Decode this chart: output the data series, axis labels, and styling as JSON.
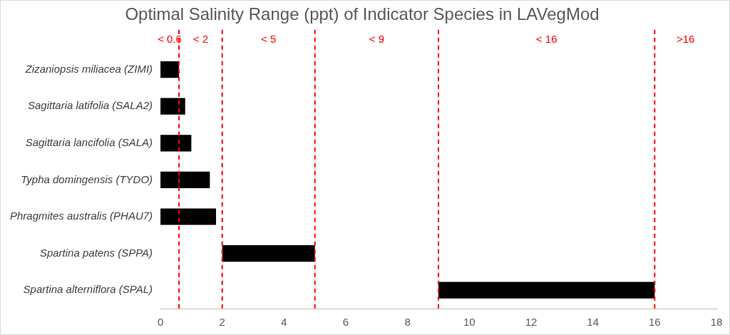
{
  "chart_data": {
    "type": "bar",
    "orientation": "horizontal",
    "title": "Optimal Salinity Range (ppt) of Indicator Species in LAVegMod",
    "categories": [
      "Zizaniopsis miliacea (ZIMI)",
      "Sagittaria latifolia (SALA2)",
      "Sagittaria lancifolia (SALA)",
      "Typha domingensis (TYDO)",
      "Phragmites australis (PHAU7)",
      "Spartina patens (SPPA)",
      "Spartina alterniflora (SPAL)"
    ],
    "values": [
      0.6,
      0.8,
      1.0,
      1.6,
      1.8,
      3,
      7
    ],
    "base": [
      0,
      0,
      0,
      0,
      0,
      2,
      9
    ],
    "color": "#000000",
    "xlim": [
      0,
      18
    ],
    "xticks": [
      0,
      2,
      4,
      6,
      8,
      10,
      12,
      14,
      16,
      18
    ],
    "grid": false,
    "legend": false,
    "ref_lines": [
      {
        "axis": "x",
        "value": 0.6,
        "label": "< 0.6",
        "color": "#ff0000",
        "line_style": "dashed"
      },
      {
        "axis": "x",
        "value": 2,
        "label": "< 2",
        "color": "#ff0000",
        "line_style": "dashed"
      },
      {
        "axis": "x",
        "value": 5,
        "label": "< 5",
        "color": "#ff0000",
        "line_style": "dashed"
      },
      {
        "axis": "x",
        "value": 9,
        "label": "< 9",
        "color": "#ff0000",
        "line_style": "dashed"
      },
      {
        "axis": "x",
        "value": 16,
        "label": "< 16",
        "color": "#ff0000",
        "line_style": "dashed"
      }
    ],
    "annotations": [
      ">16"
    ]
  }
}
